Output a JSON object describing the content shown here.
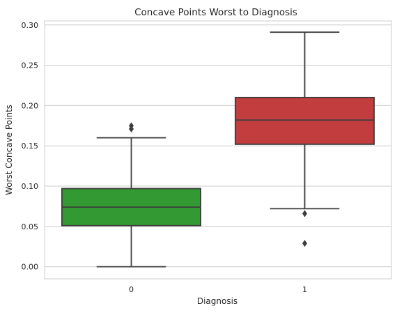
{
  "chart_data": {
    "type": "box",
    "title": "Concave Points Worst to Diagnosis",
    "xlabel": "Diagnosis",
    "ylabel": "Worst Concave Points",
    "categories": [
      "0",
      "1"
    ],
    "ylim": [
      -0.015,
      0.305
    ],
    "yticks": [
      "0.00",
      "0.05",
      "0.10",
      "0.15",
      "0.20",
      "0.25",
      "0.30"
    ],
    "grid": true,
    "boxes": [
      {
        "category": "0",
        "color": "#339933",
        "whisker_low": 0.0,
        "q1": 0.051,
        "median": 0.074,
        "q3": 0.097,
        "whisker_high": 0.16,
        "outliers": [
          0.171,
          0.175
        ]
      },
      {
        "category": "1",
        "color": "#c23d3d",
        "whisker_low": 0.072,
        "q1": 0.152,
        "median": 0.182,
        "q3": 0.21,
        "whisker_high": 0.291,
        "outliers": [
          0.029,
          0.066
        ]
      }
    ]
  }
}
